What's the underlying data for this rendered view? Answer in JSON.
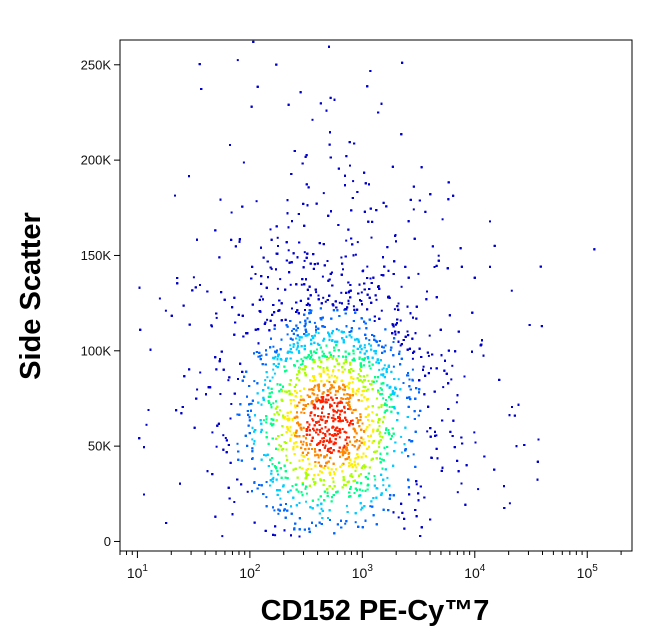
{
  "chart_data": {
    "type": "scatter",
    "plot_style": "density-colored flow cytometry dot plot",
    "xlabel": "CD152 PE-Cy™7",
    "ylabel": "Side Scatter",
    "x_scale": "log",
    "xlim": [
      7,
      250000
    ],
    "ylim": [
      -5000,
      263000
    ],
    "x_ticks": [
      {
        "value": 10,
        "base": "10",
        "exp": "1"
      },
      {
        "value": 100,
        "base": "10",
        "exp": "2"
      },
      {
        "value": 1000,
        "base": "10",
        "exp": "3"
      },
      {
        "value": 10000,
        "base": "10",
        "exp": "4"
      },
      {
        "value": 100000,
        "base": "10",
        "exp": "5"
      }
    ],
    "y_ticks": [
      {
        "value": 0,
        "label": "0"
      },
      {
        "value": 50000,
        "label": "50K"
      },
      {
        "value": 100000,
        "label": "100K"
      },
      {
        "value": 150000,
        "label": "150K"
      },
      {
        "value": 200000,
        "label": "200K"
      },
      {
        "value": 250000,
        "label": "250K"
      }
    ],
    "population": {
      "center_x": 500,
      "center_y": 62000,
      "log10_spread_x": 0.42,
      "spread_y": 30000
    },
    "density_colors": [
      "#0000cc",
      "#0066ff",
      "#00ccff",
      "#00ff88",
      "#aaff00",
      "#ffee00",
      "#ff8800",
      "#ff2200"
    ],
    "grid": false,
    "legend": "none"
  }
}
